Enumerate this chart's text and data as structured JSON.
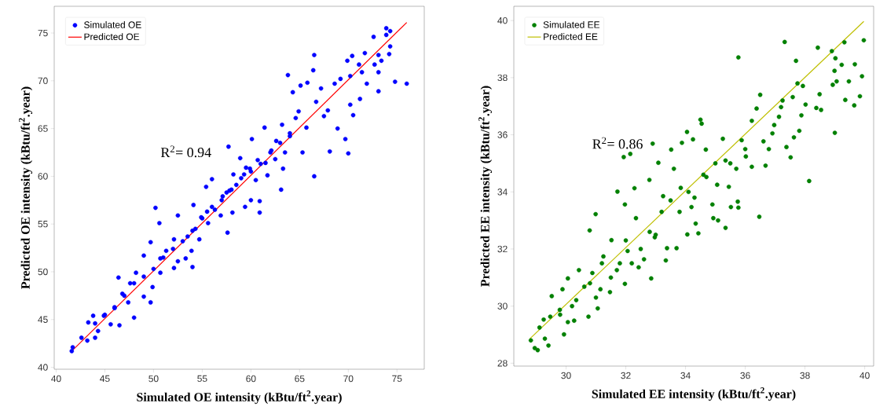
{
  "chart_data": [
    {
      "type": "scatter",
      "xlabel": "Simulated OE intensity (kBtu/ft$^{2}$.year)",
      "ylabel": "Predicted  OE intensity  (kBtu/ft$^{2}$.year)",
      "xlim": [
        39.8,
        77.8
      ],
      "ylim": [
        39.8,
        77.8
      ],
      "xticks": [
        40,
        45,
        50,
        55,
        60,
        65,
        70,
        75
      ],
      "yticks": [
        40,
        45,
        50,
        55,
        60,
        65,
        70,
        75
      ],
      "legend": "top left",
      "annotations": [
        "R$^{2}$= 0.94"
      ],
      "series": [
        {
          "name": "Simulated OE",
          "type": "scatter",
          "marker": "circle",
          "color": "#0000ff",
          "x": [
            41.6,
            41.7,
            42.6,
            43.2,
            43.3,
            44.0,
            43.8,
            44.3,
            44.9,
            45.6,
            46.0,
            46.5,
            46.4,
            46.8,
            47.4,
            48.0,
            47.6,
            48.2,
            49.0,
            49.0,
            49.7,
            49.7,
            49.9,
            50.2,
            50.7,
            50.7,
            50.6,
            51.3,
            52.1,
            52.1,
            52.5,
            52.5,
            53.3,
            53.5,
            53.9,
            54.0,
            54.1,
            54.3,
            54.7,
            54.9,
            55.4,
            55.6,
            56.0,
            56.3,
            56.9,
            57.1,
            57.6,
            57.7,
            57.8,
            58.1,
            58.2,
            58.5,
            59.3,
            59.4,
            58.9,
            59.9,
            60.0,
            60.1,
            60.9,
            60.9,
            60.7,
            61.4,
            61.5,
            61.7,
            62.1,
            62.6,
            63.1,
            63.2,
            63.3,
            63.5,
            63.8,
            64.0,
            64.3,
            64.6,
            64.9,
            65.1,
            65.3,
            65.7,
            65.8,
            66.4,
            66.5,
            66.5,
            66.7,
            67.2,
            67.5,
            67.9,
            68.1,
            68.9,
            68.6,
            69.2,
            69.7,
            70.0,
            69.9,
            70.2,
            70.2,
            70.5,
            70.4,
            71.1,
            71.2,
            71.4,
            71.7,
            71.9,
            72.6,
            72.7,
            73.1,
            73.1,
            73.1,
            73.4,
            73.9,
            73.9,
            74.3,
            74.3,
            74.2,
            74.8,
            76.0,
            45,
            47,
            49,
            51,
            53,
            55,
            56,
            57,
            58,
            59,
            60,
            61,
            62,
            63,
            64,
            50,
            52,
            54,
            46,
            44,
            48,
            57.5,
            59.5,
            60.5,
            62.5,
            55.5
          ],
          "values": [
            41.7,
            42.1,
            43.1,
            42.8,
            44.7,
            43.1,
            45.4,
            43.8,
            45.4,
            44.5,
            46.2,
            44.4,
            49.4,
            47.7,
            46.8,
            45.2,
            48.8,
            49.9,
            51.7,
            47.4,
            46.8,
            53.1,
            48.4,
            56.7,
            51.4,
            49.9,
            55.1,
            52.2,
            53.4,
            50.4,
            55.9,
            51.1,
            51.4,
            53.7,
            52.2,
            50.5,
            57.0,
            54.5,
            53.4,
            55.7,
            58.9,
            55.1,
            59.7,
            56.5,
            55.9,
            57.9,
            54.1,
            63.1,
            58.5,
            56.2,
            60.2,
            59.1,
            60.2,
            56.8,
            61.9,
            60.8,
            57.5,
            63.9,
            56.2,
            57.4,
            61.7,
            65.1,
            61.4,
            60.1,
            62.7,
            63.7,
            58.6,
            65.4,
            60.8,
            62.5,
            70.6,
            64.5,
            68.8,
            66.1,
            66.8,
            69.5,
            62.5,
            65.1,
            69.8,
            71.1,
            72.7,
            60.0,
            67.8,
            69.2,
            66.3,
            66.9,
            62.6,
            65.0,
            69.7,
            70.2,
            63.9,
            62.4,
            72.1,
            70.5,
            67.5,
            66.4,
            72.6,
            71.7,
            68.1,
            70.9,
            72.9,
            69.7,
            74.6,
            71.7,
            70.9,
            68.9,
            72.7,
            72.1,
            75.5,
            74.8,
            75.2,
            73.6,
            72.8,
            69.9,
            69.7,
            45.5,
            47.5,
            49.5,
            51.5,
            53.2,
            55.6,
            56.8,
            57.5,
            58.6,
            59.8,
            60.5,
            61.3,
            62.5,
            63.5,
            64.2,
            50.3,
            52.4,
            54.3,
            46.3,
            44.6,
            48.8,
            58.3,
            60.9,
            59.6,
            61.8,
            56.3
          ]
        },
        {
          "name": "Predicted OE",
          "type": "line",
          "marker": "none",
          "line_style": "solid",
          "color": "#ff0000",
          "x": [
            41.6,
            76.0
          ],
          "values": [
            41.7,
            76.1
          ]
        }
      ]
    },
    {
      "type": "scatter",
      "xlabel": "Simulated EE intensity (kBtu/ft$^{2}$.year)",
      "ylabel": "Predicted EE intensity  (kBtu/ft$^{2}$.year)",
      "xlim": [
        28.25,
        40.3
      ],
      "ylim": [
        27.9,
        40.5
      ],
      "xticks": [
        30,
        32,
        34,
        36,
        38,
        40
      ],
      "yticks": [
        28,
        30,
        32,
        34,
        36,
        38,
        40
      ],
      "legend": "top left",
      "annotations": [
        "R$^{2}$= 0.86"
      ],
      "series": [
        {
          "name": "Simulated EE",
          "type": "scatter",
          "marker": "circle",
          "color": "#008000",
          "x": [
            28.82,
            28.95,
            29.05,
            29.41,
            29.29,
            29.11,
            29.25,
            29.52,
            29.47,
            29.79,
            29.93,
            29.88,
            30.06,
            30.06,
            30.27,
            30.34,
            30.43,
            30.61,
            30.75,
            30.79,
            30.88,
            30.99,
            31.06,
            31.15,
            31.25,
            31.47,
            31.52,
            31.72,
            31.7,
            31.93,
            32.15,
            31.97,
            31.97,
            32.06,
            32.29,
            32.34,
            32.43,
            32.61,
            32.79,
            32.85,
            32.9,
            32.97,
            33.09,
            33.25,
            33.34,
            33.38,
            33.52,
            33.61,
            33.7,
            33.84,
            33.88,
            34.05,
            34.06,
            34.25,
            34.2,
            34.34,
            34.43,
            34.5,
            34.54,
            34.68,
            34.7,
            34.9,
            34.93,
            35.09,
            35.06,
            35.25,
            35.34,
            35.34,
            35.45,
            35.52,
            35.7,
            35.77,
            35.75,
            35.77,
            35.88,
            36.02,
            36.22,
            36.22,
            36.38,
            36.47,
            36.5,
            36.61,
            36.68,
            36.79,
            36.91,
            36.97,
            37.13,
            37.2,
            37.25,
            37.32,
            37.38,
            37.52,
            37.59,
            37.63,
            37.7,
            37.75,
            37.81,
            37.88,
            37.93,
            38.02,
            38.14,
            38.38,
            38.43,
            38.49,
            38.54,
            38.9,
            38.93,
            38.99,
            39.0,
            39.02,
            39.06,
            39.23,
            39.32,
            39.35,
            39.47,
            39.65,
            39.67,
            39.84,
            39.91,
            39.97,
            30.8,
            31.2,
            31.5,
            32.0,
            32.5,
            32.8,
            33.2,
            33.5,
            33.8,
            34.1,
            34.6,
            35.0,
            31.0,
            31.8,
            32.2,
            33.0,
            30.2,
            29.8,
            34.3,
            35.5,
            36.0
          ],
          "values": [
            28.8,
            28.53,
            28.46,
            28.62,
            28.86,
            29.25,
            29.53,
            30.35,
            29.63,
            29.87,
            29.01,
            30.59,
            30.97,
            29.44,
            29.49,
            30.21,
            31.26,
            30.68,
            29.63,
            32.65,
            31.16,
            33.22,
            29.92,
            30.59,
            31.74,
            30.49,
            32.31,
            34.01,
            31.26,
            35.22,
            35.33,
            33.56,
            30.78,
            31.93,
            34.13,
            33.08,
            31.36,
            31.64,
            34.42,
            30.97,
            35.69,
            32.41,
            35.02,
            33.85,
            31.6,
            32.03,
            35.48,
            34.81,
            32.03,
            34.14,
            35.72,
            36.1,
            32.51,
            35.84,
            33.47,
            32.89,
            32.55,
            36.53,
            36.39,
            35.48,
            34.52,
            33.56,
            33.08,
            33.0,
            34.25,
            35.86,
            32.74,
            35.1,
            34.18,
            33.47,
            34.81,
            38.71,
            33.66,
            33.45,
            35.81,
            35.24,
            34.88,
            36.49,
            36.92,
            33.13,
            37.4,
            35.77,
            34.92,
            35.5,
            36.05,
            36.34,
            36.63,
            36.97,
            37.2,
            39.25,
            35.57,
            35.21,
            37.32,
            35.91,
            38.59,
            37.8,
            36.14,
            36.68,
            37.71,
            37.06,
            34.38,
            36.94,
            39.05,
            37.42,
            36.87,
            38.93,
            37.75,
            38.24,
            36.07,
            38.68,
            37.87,
            38.45,
            39.24,
            37.22,
            37.87,
            37.03,
            38.47,
            37.35,
            38.05,
            39.31,
            30.8,
            31.5,
            31.0,
            32.3,
            32.0,
            32.6,
            33.3,
            33.7,
            33.3,
            34.0,
            34.6,
            35.0,
            30.3,
            31.5,
            31.5,
            32.5,
            30.0,
            29.7,
            33.8,
            35.0,
            35.5
          ]
        },
        {
          "name": "Predicted EE",
          "type": "line",
          "marker": "none",
          "line_style": "solid",
          "color": "#bfbf00",
          "x": [
            28.79,
            39.97
          ],
          "values": [
            28.86,
            39.97
          ]
        }
      ]
    }
  ]
}
